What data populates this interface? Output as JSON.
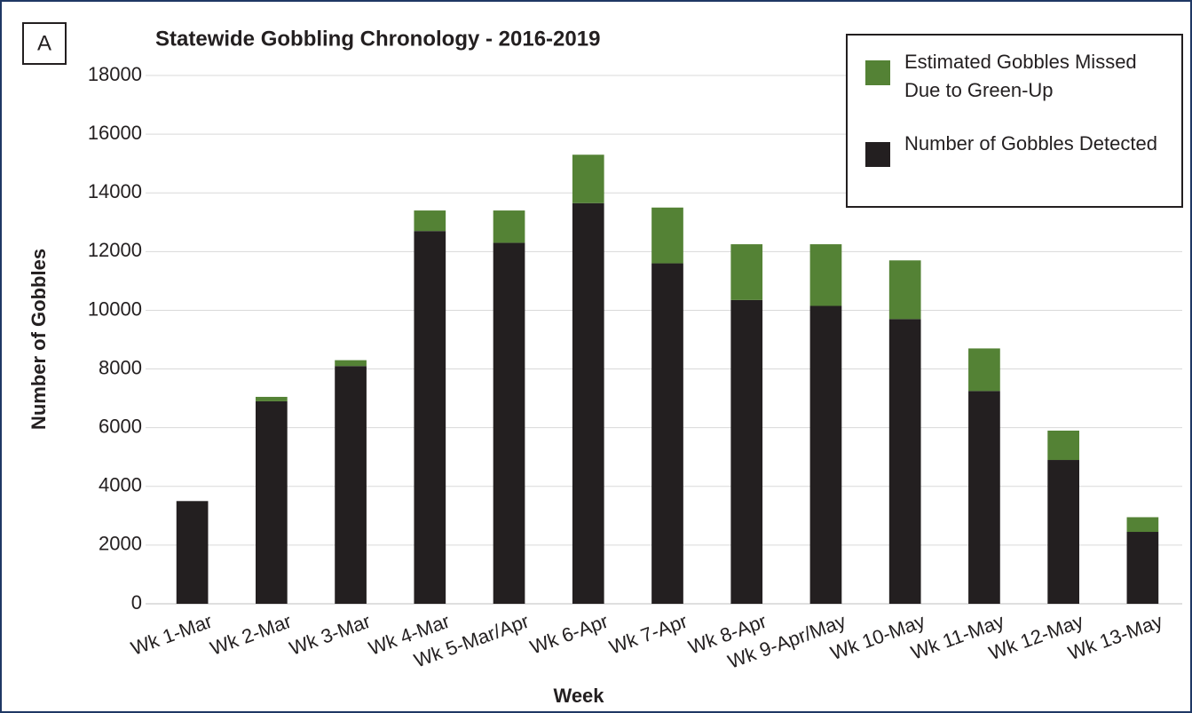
{
  "chart_data": {
    "type": "stacked_bar",
    "panel_label": "A",
    "title": "Statewide Gobbling Chronology - 2016-2019",
    "x_label": "Week",
    "y_label": "Number of Gobbles",
    "categories": [
      "Wk 1-Mar",
      "Wk 2-Mar",
      "Wk 3-Mar",
      "Wk 4-Mar",
      "Wk 5-Mar/Apr",
      "Wk 6-Apr",
      "Wk 7-Apr",
      "Wk 8-Apr",
      "Wk 9-Apr/May",
      "Wk 10-May",
      "Wk 11-May",
      "Wk 12-May",
      "Wk 13-May"
    ],
    "series": [
      {
        "name": "Number of Gobbles Detected",
        "color": "#231f20",
        "values": [
          3500,
          6900,
          8100,
          12700,
          12300,
          13650,
          11600,
          10350,
          10150,
          9700,
          7250,
          4900,
          2450
        ]
      },
      {
        "name": "Estimated Gobbles Missed Due to Green-Up",
        "color": "#548235",
        "values": [
          0,
          150,
          200,
          700,
          1100,
          1650,
          1900,
          1900,
          2100,
          2000,
          1450,
          1000,
          500
        ]
      }
    ],
    "ylim": [
      0,
      18000
    ],
    "yticks": [
      0,
      2000,
      4000,
      6000,
      8000,
      10000,
      12000,
      14000,
      16000,
      18000
    ],
    "grid": true
  }
}
